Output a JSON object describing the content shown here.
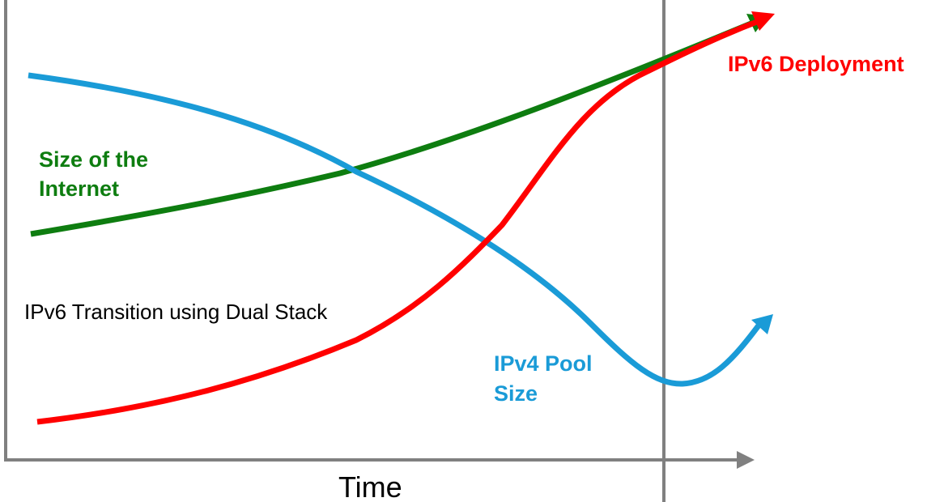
{
  "labels": {
    "size_of_internet_line1": "Size of the",
    "size_of_internet_line2": "Internet",
    "ipv6_deployment": "IPv6 Deployment",
    "ipv4_pool_line1": "IPv4 Pool",
    "ipv4_pool_line2": "Size",
    "transition": "IPv6 Transition using Dual Stack",
    "x_axis": "Time"
  },
  "colors": {
    "internet": "#0e7d10",
    "ipv6": "#ff0000",
    "ipv4": "#1a9bd7",
    "axis": "#808080",
    "text": "#000000"
  }
}
